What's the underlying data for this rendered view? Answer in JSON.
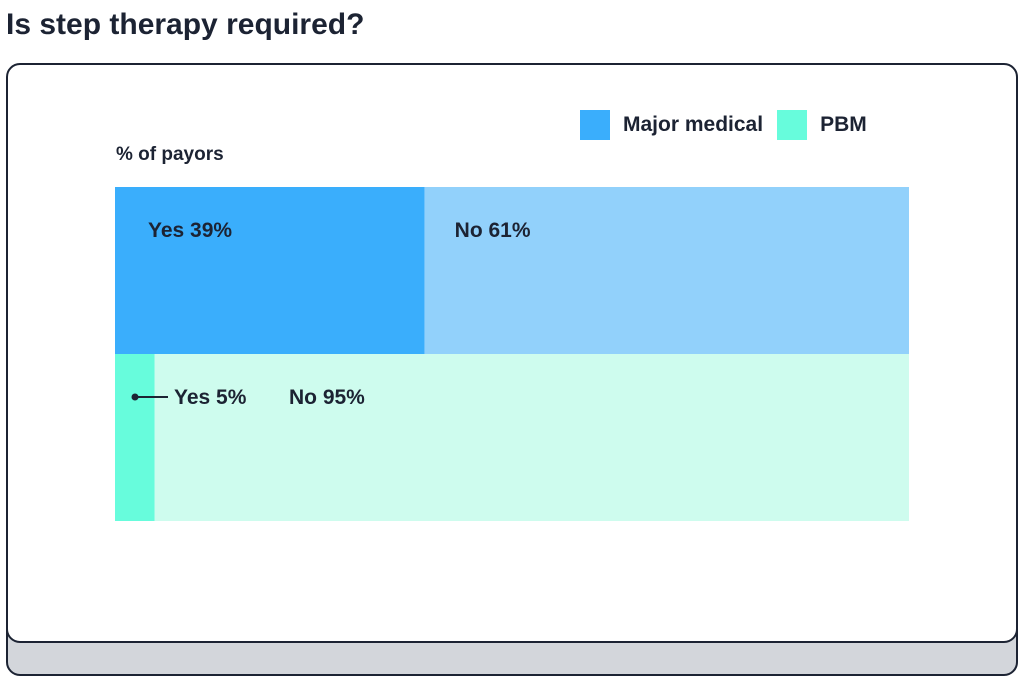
{
  "title": "Is step therapy required?",
  "chart_data": {
    "type": "bar",
    "orientation": "horizontal-stacked-100",
    "title": "Is step therapy required?",
    "ylabel": "% of payors",
    "xlim": [
      0,
      100
    ],
    "categories": [
      "Major medical",
      "PBM"
    ],
    "series": [
      {
        "name": "Yes",
        "values": [
          39,
          5
        ]
      },
      {
        "name": "No",
        "values": [
          61,
          95
        ]
      }
    ],
    "labels": [
      [
        "Yes 39%",
        "No 61%"
      ],
      [
        "Yes 5%",
        "No 95%"
      ]
    ],
    "legend": [
      {
        "name": "Major medical",
        "color": "#3aaefc"
      },
      {
        "name": "PBM",
        "color": "#67fcdc"
      }
    ],
    "colors": {
      "Major medical": {
        "Yes": "#3aaefc",
        "No": "#92d1fb"
      },
      "PBM": {
        "Yes": "#67fcdc",
        "No": "#cefcee"
      }
    },
    "legend_position": "top-right"
  }
}
